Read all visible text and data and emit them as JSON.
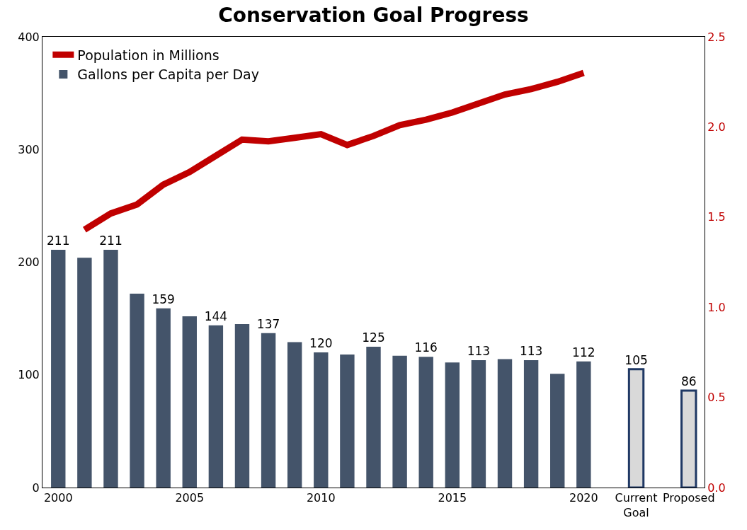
{
  "chart_data": {
    "type": "bar",
    "title": "Conservation Goal Progress",
    "categories": [
      "2000",
      null,
      null,
      null,
      null,
      "2005",
      null,
      null,
      null,
      null,
      "2010",
      null,
      null,
      null,
      null,
      "2015",
      null,
      null,
      null,
      null,
      "2020",
      null,
      "Current\nGoal",
      null,
      "Proposed"
    ],
    "series": [
      {
        "name": "Population in Millions",
        "type": "line",
        "axis": "y2",
        "color": "#c00000",
        "values": [
          null,
          1.43,
          1.52,
          1.57,
          1.68,
          1.75,
          1.84,
          1.93,
          1.92,
          1.94,
          1.96,
          1.9,
          1.95,
          2.01,
          2.04,
          2.08,
          2.13,
          2.18,
          2.21,
          2.25,
          2.3,
          null,
          null,
          null,
          null
        ]
      },
      {
        "name": "Gallons per Capita per Day",
        "color": "#44546a",
        "colors": [
          "#44546a",
          "#44546a",
          "#44546a",
          "#44546a",
          "#44546a",
          "#44546a",
          "#44546a",
          "#44546a",
          "#44546a",
          "#44546a",
          "#44546a",
          "#44546a",
          "#44546a",
          "#44546a",
          "#44546a",
          "#44546a",
          "#44546a",
          "#44546a",
          "#44546a",
          "#44546a",
          "#44546a",
          "#44546a",
          "#d9d9d9",
          "#44546a",
          "#d9d9d9"
        ],
        "values": [
          211,
          204,
          211,
          172,
          159,
          152,
          144,
          145,
          137,
          129,
          120,
          118,
          125,
          117,
          116,
          111,
          113,
          114,
          113,
          101,
          112,
          null,
          105,
          null,
          86
        ],
        "value_labels": [
          "211",
          null,
          "211",
          null,
          "159",
          null,
          "144",
          null,
          "137",
          null,
          "120",
          null,
          "125",
          null,
          "116",
          null,
          "113",
          null,
          "113",
          null,
          "112",
          null,
          "105",
          null,
          "86"
        ]
      }
    ],
    "ylim": [
      0,
      400
    ],
    "yticks": [
      0,
      100,
      200,
      300,
      400
    ],
    "y2lim": [
      0,
      2.5
    ],
    "y2ticks": [
      {
        "value": 0,
        "label": "0.0"
      },
      {
        "value": 0.5,
        "label": "0.5"
      },
      {
        "value": 1,
        "label": "1.0"
      },
      {
        "value": 1.5,
        "label": "1.5"
      },
      {
        "value": 2,
        "label": "2.0"
      },
      {
        "value": 2.5,
        "label": "2.5"
      }
    ],
    "legend": "top left"
  }
}
